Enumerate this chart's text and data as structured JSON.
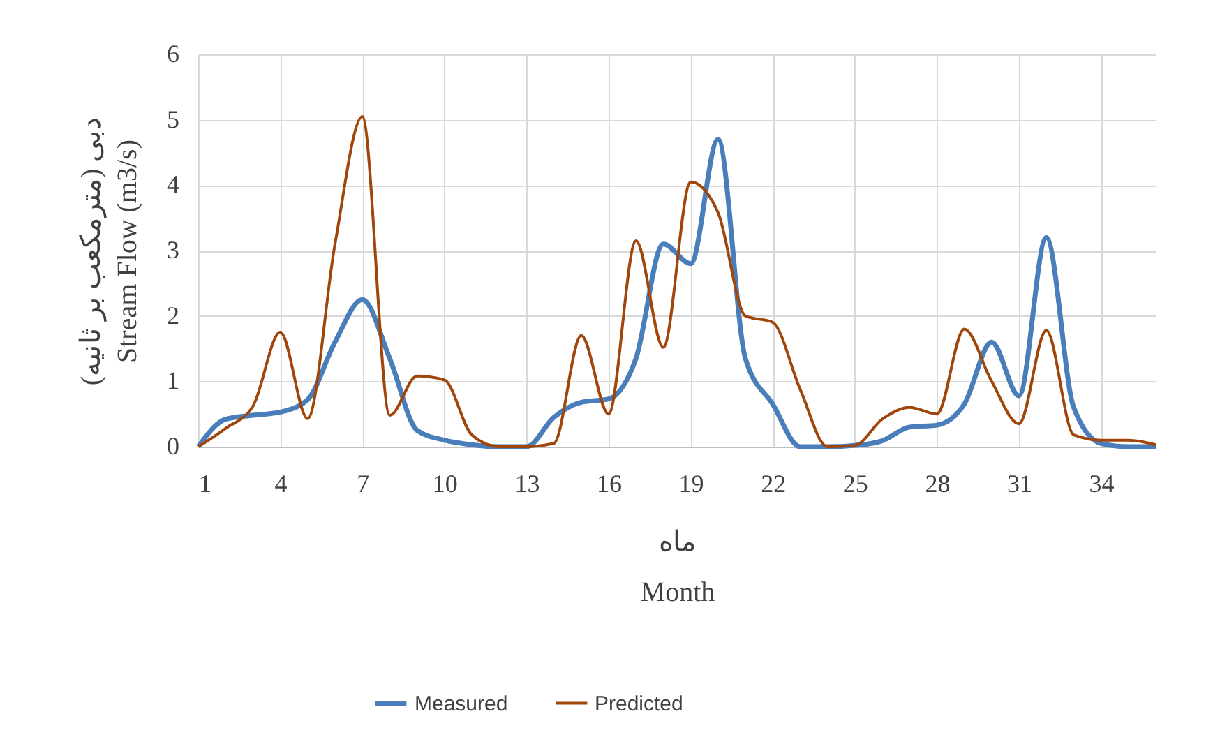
{
  "chart_data": {
    "type": "line",
    "xlabel": "ماه\nMonth",
    "ylabel": "دبی (مترمکعب بر ثانیه)\nStream Flow (m3/s)",
    "x": [
      1,
      2,
      3,
      4,
      5,
      6,
      7,
      8,
      9,
      10,
      11,
      12,
      13,
      14,
      15,
      16,
      17,
      18,
      19,
      20,
      21,
      22,
      23,
      24,
      25,
      26,
      27,
      28,
      29,
      30,
      31,
      32,
      33,
      34,
      35,
      36
    ],
    "series": [
      {
        "name": "Measured",
        "color": "#4a7ebb",
        "values": [
          0,
          0.42,
          0.48,
          0.53,
          0.72,
          1.6,
          2.25,
          1.35,
          0.25,
          0.1,
          0.03,
          0,
          0,
          0.45,
          0.68,
          0.73,
          1.35,
          3.1,
          2.8,
          4.7,
          1.35,
          0.65,
          0,
          0,
          0.02,
          0.09,
          0.3,
          0.33,
          0.65,
          1.6,
          0.78,
          3.2,
          0.6,
          0.05,
          0,
          0
        ]
      },
      {
        "name": "Predicted",
        "color": "#a0460a",
        "values": [
          0,
          0.28,
          0.62,
          1.75,
          0.43,
          3.1,
          5.05,
          0.48,
          1.08,
          1.02,
          0.18,
          0,
          0,
          0.05,
          1.7,
          0.5,
          3.15,
          1.52,
          4.05,
          3.58,
          2.0,
          1.9,
          0.88,
          0,
          0.02,
          0.42,
          0.6,
          0.5,
          1.8,
          1.0,
          0.35,
          1.78,
          0.18,
          0.1,
          0.1,
          0.03
        ]
      }
    ],
    "xlim": [
      1,
      36
    ],
    "xticks": [
      1,
      4,
      7,
      10,
      13,
      16,
      19,
      22,
      25,
      28,
      31,
      34
    ],
    "ylim": [
      0,
      6
    ],
    "yticks": [
      0,
      1,
      2,
      3,
      4,
      5,
      6
    ],
    "grid": true,
    "legend": "bottom",
    "marker": "none",
    "line_style": "solid"
  }
}
